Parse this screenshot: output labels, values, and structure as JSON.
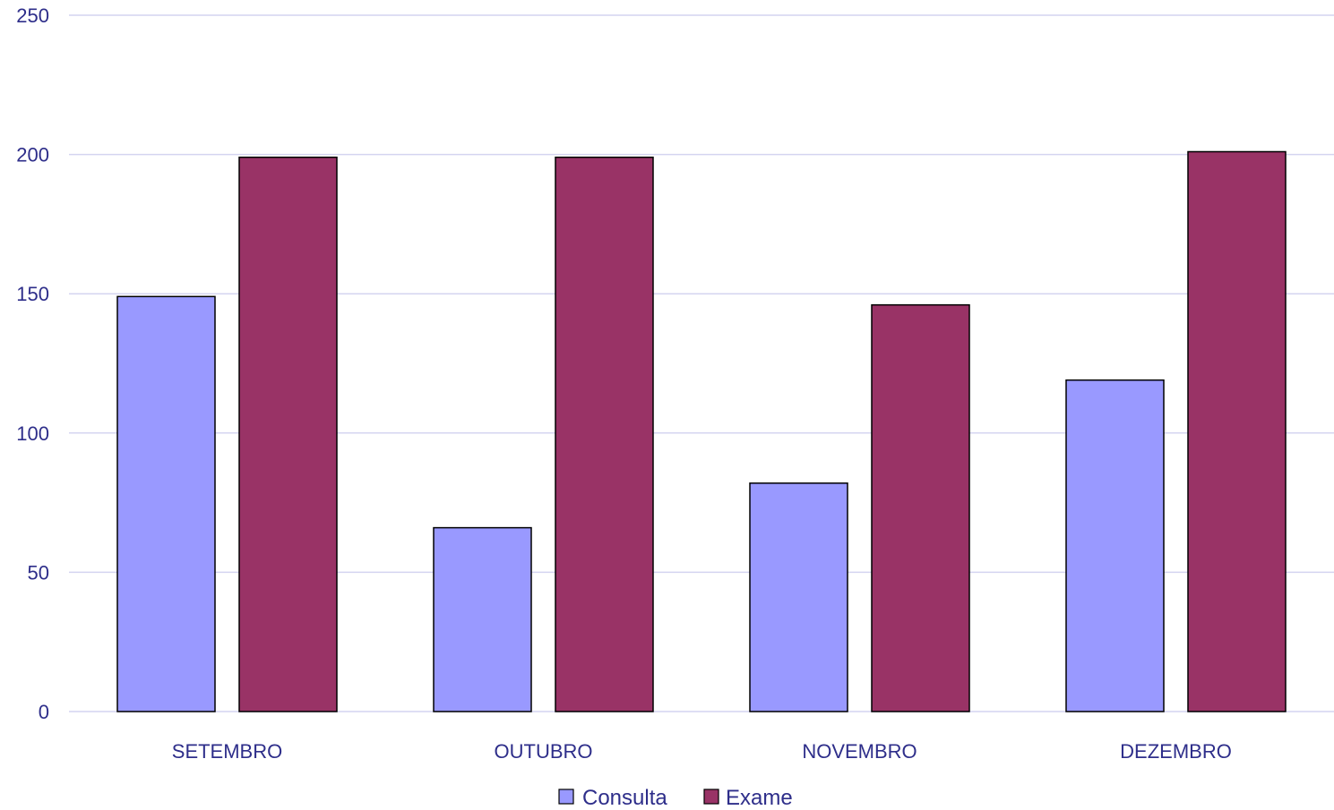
{
  "chart_data": {
    "type": "bar",
    "categories": [
      "SETEMBRO",
      "OUTUBRO",
      "NOVEMBRO",
      "DEZEMBRO"
    ],
    "series": [
      {
        "name": "Consulta",
        "color": "#9999ff",
        "values": [
          149,
          66,
          82,
          119
        ]
      },
      {
        "name": "Exame",
        "color": "#993366",
        "values": [
          199,
          199,
          146,
          201
        ]
      }
    ],
    "ylim": [
      0,
      250
    ],
    "yticks": [
      0,
      50,
      100,
      150,
      200,
      250
    ],
    "grid": true,
    "legend_position": "bottom",
    "title": "",
    "xlabel": "",
    "ylabel": ""
  }
}
